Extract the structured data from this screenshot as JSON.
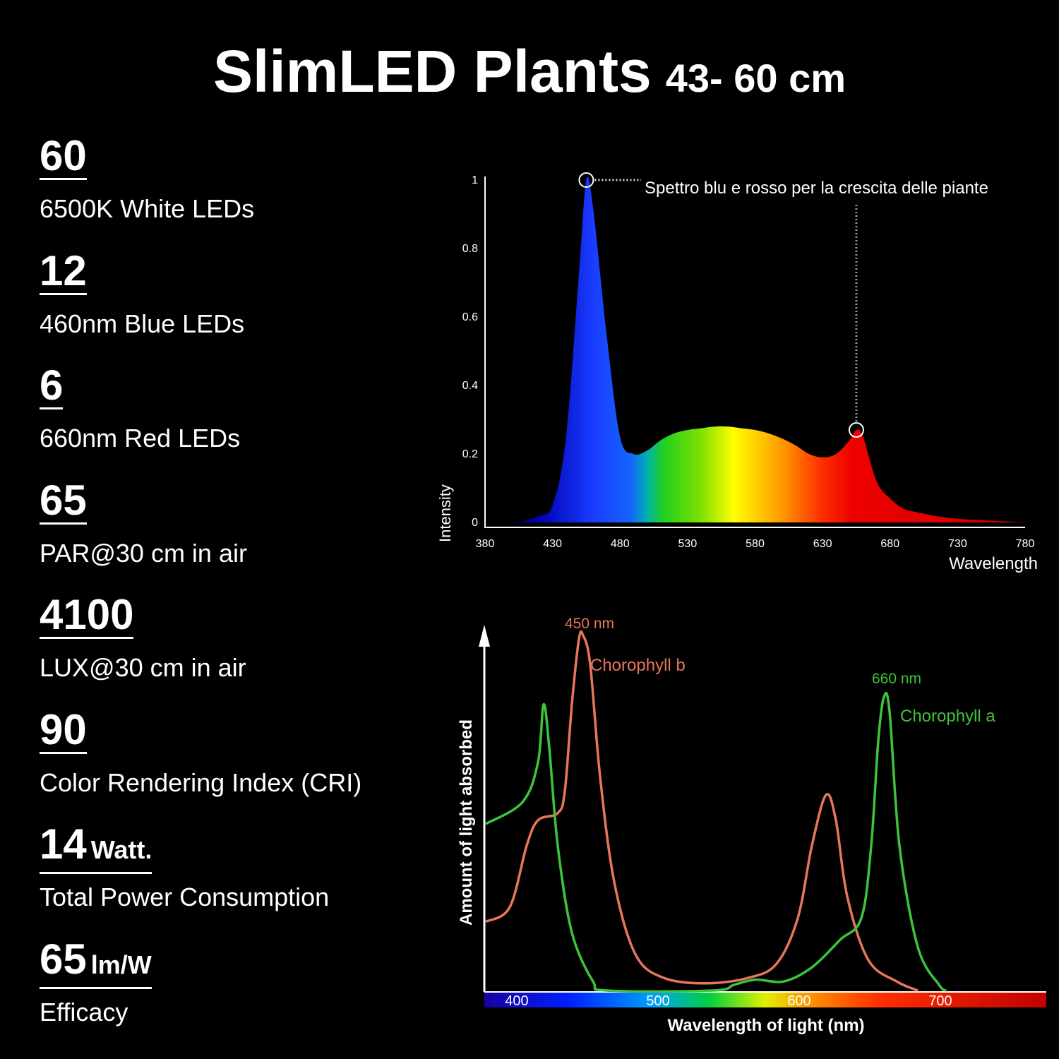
{
  "title": "SlimLED Plants",
  "subtitle": "43- 60 cm",
  "specs": [
    {
      "value": 60,
      "label": "6500K White LEDs"
    },
    {
      "value": 12,
      "label": "460nm Blue LEDs"
    },
    {
      "value": 6,
      "label": "660nm Red LEDs"
    },
    {
      "value": 65,
      "label": "PAR@30 cm in air"
    },
    {
      "value": 4100,
      "label": "LUX@30 cm in air"
    },
    {
      "value": 90,
      "label": "Color Rendering Index (CRI)"
    },
    {
      "value": 14,
      "unit": "Watt.",
      "label": "Total Power Consumption"
    },
    {
      "value": 65,
      "unit": "lm/W",
      "label": "Efficacy"
    }
  ],
  "chart_data": [
    {
      "type": "area",
      "x_label": "Wavelength",
      "y_label": "Intensity",
      "annotation": "Spettro blu e rosso per la crescita delle piante",
      "x": [
        380,
        390,
        400,
        410,
        420,
        430,
        440,
        450,
        455,
        460,
        470,
        480,
        490,
        500,
        510,
        520,
        530,
        540,
        550,
        560,
        570,
        580,
        590,
        600,
        610,
        620,
        630,
        640,
        650,
        655,
        660,
        670,
        680,
        690,
        700,
        720,
        740,
        760,
        780
      ],
      "values": [
        0,
        0,
        0,
        0.005,
        0.02,
        0.05,
        0.25,
        0.75,
        1,
        0.92,
        0.55,
        0.25,
        0.2,
        0.21,
        0.24,
        0.26,
        0.27,
        0.275,
        0.28,
        0.28,
        0.275,
        0.27,
        0.26,
        0.245,
        0.225,
        0.2,
        0.19,
        0.2,
        0.24,
        0.27,
        0.25,
        0.12,
        0.07,
        0.04,
        0.03,
        0.015,
        0.008,
        0.004,
        0
      ],
      "xlim": [
        380,
        780
      ],
      "xticks": [
        380,
        430,
        480,
        530,
        580,
        630,
        680,
        730,
        780
      ],
      "ylim": [
        0,
        1
      ],
      "yticks": [
        0,
        0.2,
        0.4,
        0.6,
        0.8,
        1
      ]
    },
    {
      "type": "line",
      "x_label": "Wavelength of light (nm)",
      "y_label": "Amount of light absorbed",
      "annotations": [
        "450 nm",
        "660 nm"
      ],
      "series": [
        {
          "name": "Chorophyll b",
          "color": "#e8765a",
          "x": [
            378,
            395,
            407,
            415,
            429,
            434,
            439,
            444,
            447,
            452,
            459,
            469,
            484,
            504,
            534,
            564,
            584,
            599,
            609,
            619,
            626,
            634,
            649,
            669,
            684
          ],
          "values": [
            0.19,
            0.23,
            0.4,
            0.47,
            0.49,
            0.55,
            0.79,
            0.97,
            0.98,
            0.9,
            0.59,
            0.3,
            0.1,
            0.035,
            0.02,
            0.035,
            0.074,
            0.2,
            0.4,
            0.54,
            0.47,
            0.26,
            0.084,
            0.025,
            0
          ]
        },
        {
          "name": "Chorophyll a",
          "color": "#3ec43a",
          "x": [
            378,
            404,
            415,
            419,
            423,
            429,
            439,
            454,
            464,
            539,
            554,
            569,
            589,
            609,
            629,
            644,
            651,
            656,
            660,
            664,
            671,
            684,
            699,
            704
          ],
          "values": [
            0.46,
            0.52,
            0.63,
            0.79,
            0.67,
            0.4,
            0.16,
            0.025,
            0,
            0,
            0.016,
            0.03,
            0.025,
            0.064,
            0.14,
            0.2,
            0.4,
            0.69,
            0.81,
            0.77,
            0.4,
            0.12,
            0.016,
            0
          ]
        }
      ],
      "xlim": [
        377,
        775
      ],
      "xticks": [
        400,
        500,
        600,
        700
      ],
      "ylim": [
        0,
        1
      ]
    }
  ]
}
